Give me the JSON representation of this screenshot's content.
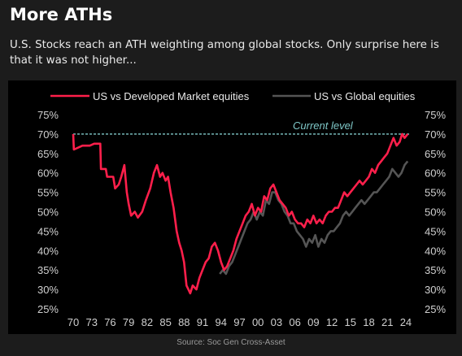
{
  "header": {
    "title": "More ATHs",
    "subtitle": "U.S. Stocks reach an ATH weighting among global stocks. Only surprise here is that it was not higher..."
  },
  "source": "Source: Soc Gen Cross-Asset",
  "chart_data": {
    "type": "line",
    "title": "",
    "xlabel": "",
    "ylabel": "",
    "x_ticks": [
      "70",
      "73",
      "76",
      "79",
      "82",
      "85",
      "88",
      "91",
      "94",
      "97",
      "00",
      "03",
      "06",
      "09",
      "12",
      "15",
      "18",
      "21",
      "24"
    ],
    "y_ticks": [
      "25%",
      "30%",
      "35%",
      "40%",
      "45%",
      "50%",
      "55%",
      "60%",
      "65%",
      "70%",
      "75%"
    ],
    "xlim": [
      1970,
      2024.8
    ],
    "ylim": [
      25,
      75
    ],
    "grid": false,
    "legend": "top",
    "annotation": {
      "label": "Current level",
      "value": 70,
      "color": "#7fc8c8"
    },
    "series": [
      {
        "name": "US vs Developed Market equities",
        "color": "#ff1f4b",
        "points": [
          [
            1970.0,
            70
          ],
          [
            1970.1,
            66
          ],
          [
            1971.5,
            67
          ],
          [
            1972.7,
            67
          ],
          [
            1973.4,
            67.5
          ],
          [
            1974.4,
            67.5
          ],
          [
            1974.5,
            61
          ],
          [
            1975.3,
            61
          ],
          [
            1975.5,
            59
          ],
          [
            1976.5,
            59
          ],
          [
            1976.8,
            56
          ],
          [
            1977.4,
            57
          ],
          [
            1977.8,
            59
          ],
          [
            1978.3,
            62
          ],
          [
            1978.7,
            55
          ],
          [
            1979.0,
            52
          ],
          [
            1979.4,
            49
          ],
          [
            1980.0,
            50
          ],
          [
            1980.5,
            48.5
          ],
          [
            1981.2,
            50
          ],
          [
            1981.8,
            53
          ],
          [
            1982.5,
            56
          ],
          [
            1983.1,
            60
          ],
          [
            1983.6,
            62
          ],
          [
            1984.1,
            59
          ],
          [
            1984.5,
            60
          ],
          [
            1985.0,
            58
          ],
          [
            1985.4,
            59
          ],
          [
            1985.8,
            55
          ],
          [
            1986.3,
            51
          ],
          [
            1986.8,
            45
          ],
          [
            1987.2,
            42
          ],
          [
            1987.6,
            40
          ],
          [
            1988.0,
            37
          ],
          [
            1988.4,
            31
          ],
          [
            1988.7,
            30
          ],
          [
            1989.0,
            29
          ],
          [
            1989.4,
            31
          ],
          [
            1990.0,
            30
          ],
          [
            1990.5,
            33
          ],
          [
            1991.0,
            35
          ],
          [
            1991.5,
            37
          ],
          [
            1992.0,
            38
          ],
          [
            1992.5,
            41
          ],
          [
            1993.0,
            42
          ],
          [
            1993.5,
            40
          ],
          [
            1994.0,
            37
          ],
          [
            1994.5,
            35
          ],
          [
            1995.0,
            36
          ],
          [
            1995.5,
            38
          ],
          [
            1996.0,
            40
          ],
          [
            1996.5,
            43
          ],
          [
            1997.0,
            45
          ],
          [
            1997.5,
            47
          ],
          [
            1998.0,
            49
          ],
          [
            1998.5,
            50
          ],
          [
            1999.0,
            52
          ],
          [
            1999.5,
            49
          ],
          [
            2000.0,
            51
          ],
          [
            2000.5,
            50
          ],
          [
            2001.0,
            54
          ],
          [
            2001.5,
            53
          ],
          [
            2002.0,
            56
          ],
          [
            2002.5,
            57
          ],
          [
            2003.0,
            55
          ],
          [
            2003.5,
            53
          ],
          [
            2004.0,
            52
          ],
          [
            2004.5,
            51
          ],
          [
            2005.0,
            49
          ],
          [
            2005.5,
            50
          ],
          [
            2006.0,
            48
          ],
          [
            2006.5,
            47
          ],
          [
            2007.0,
            47
          ],
          [
            2007.5,
            46
          ],
          [
            2008.0,
            48
          ],
          [
            2008.5,
            47
          ],
          [
            2009.0,
            49
          ],
          [
            2009.5,
            47
          ],
          [
            2010.0,
            48
          ],
          [
            2010.5,
            47
          ],
          [
            2011.0,
            49
          ],
          [
            2011.5,
            50
          ],
          [
            2012.0,
            50
          ],
          [
            2012.5,
            51
          ],
          [
            2013.0,
            51
          ],
          [
            2013.5,
            53
          ],
          [
            2014.0,
            55
          ],
          [
            2014.5,
            54
          ],
          [
            2015.0,
            55
          ],
          [
            2015.5,
            56
          ],
          [
            2016.0,
            57
          ],
          [
            2016.5,
            58
          ],
          [
            2017.0,
            57
          ],
          [
            2017.5,
            58
          ],
          [
            2018.0,
            59
          ],
          [
            2018.5,
            61
          ],
          [
            2019.0,
            60
          ],
          [
            2019.5,
            62
          ],
          [
            2020.0,
            63
          ],
          [
            2020.5,
            64
          ],
          [
            2021.0,
            65
          ],
          [
            2021.5,
            67
          ],
          [
            2022.0,
            69
          ],
          [
            2022.5,
            67
          ],
          [
            2023.0,
            68
          ],
          [
            2023.4,
            70
          ],
          [
            2023.8,
            69
          ],
          [
            2024.3,
            70
          ]
        ]
      },
      {
        "name": "US vs Global equities",
        "color": "#555555",
        "points": [
          [
            1993.8,
            34
          ],
          [
            1994.3,
            35
          ],
          [
            1994.8,
            34
          ],
          [
            1995.3,
            36
          ],
          [
            1995.8,
            37
          ],
          [
            1996.3,
            39
          ],
          [
            1996.8,
            41
          ],
          [
            1997.3,
            43
          ],
          [
            1997.8,
            45
          ],
          [
            1998.3,
            47
          ],
          [
            1998.8,
            48
          ],
          [
            1999.3,
            50
          ],
          [
            1999.8,
            48
          ],
          [
            2000.3,
            50
          ],
          [
            2000.8,
            49
          ],
          [
            2001.3,
            53
          ],
          [
            2001.8,
            52
          ],
          [
            2002.3,
            55
          ],
          [
            2002.8,
            55
          ],
          [
            2003.3,
            53
          ],
          [
            2003.8,
            52
          ],
          [
            2004.3,
            50
          ],
          [
            2004.8,
            49
          ],
          [
            2005.3,
            47
          ],
          [
            2005.8,
            47
          ],
          [
            2006.3,
            45
          ],
          [
            2006.8,
            44
          ],
          [
            2007.3,
            43
          ],
          [
            2007.8,
            41
          ],
          [
            2008.3,
            43
          ],
          [
            2008.8,
            42
          ],
          [
            2009.3,
            44
          ],
          [
            2009.8,
            41
          ],
          [
            2010.3,
            43
          ],
          [
            2010.8,
            42
          ],
          [
            2011.3,
            44
          ],
          [
            2011.8,
            45
          ],
          [
            2012.3,
            45
          ],
          [
            2012.8,
            46
          ],
          [
            2013.3,
            47
          ],
          [
            2013.8,
            49
          ],
          [
            2014.3,
            50
          ],
          [
            2014.8,
            49
          ],
          [
            2015.3,
            50
          ],
          [
            2015.8,
            51
          ],
          [
            2016.3,
            52
          ],
          [
            2016.8,
            53
          ],
          [
            2017.3,
            52
          ],
          [
            2017.8,
            53
          ],
          [
            2018.3,
            54
          ],
          [
            2018.8,
            55
          ],
          [
            2019.3,
            55
          ],
          [
            2019.8,
            56
          ],
          [
            2020.3,
            57
          ],
          [
            2020.8,
            58
          ],
          [
            2021.3,
            59
          ],
          [
            2021.8,
            61
          ],
          [
            2022.3,
            60
          ],
          [
            2022.8,
            59
          ],
          [
            2023.3,
            60
          ],
          [
            2023.8,
            62
          ],
          [
            2024.3,
            63
          ]
        ]
      }
    ]
  }
}
